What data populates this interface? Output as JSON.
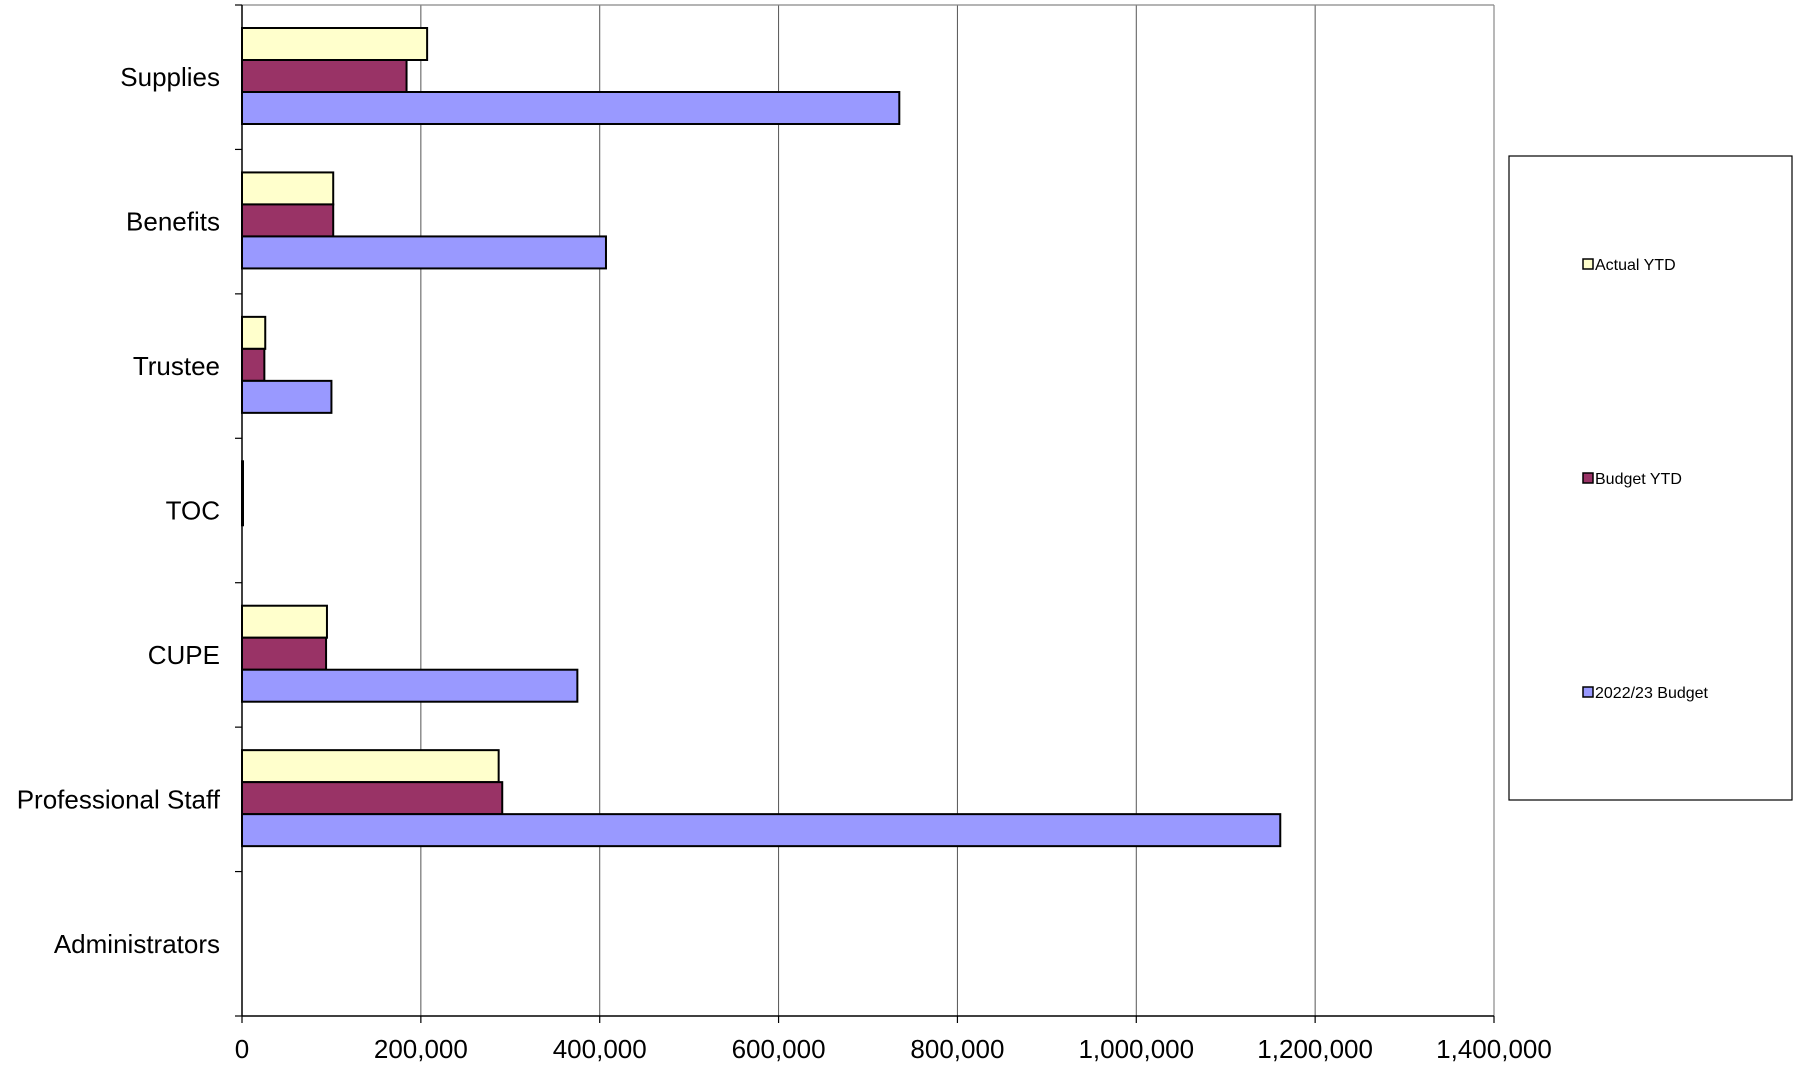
{
  "chart_data": {
    "type": "bar",
    "orientation": "horizontal",
    "categories": [
      "Supplies",
      "Benefits",
      "Trustee",
      "TOC",
      "CUPE",
      "Professional Staff",
      "Administrators"
    ],
    "series": [
      {
        "name": "Actual YTD",
        "color": "#FFFFCC",
        "values": [
          207000,
          102000,
          26000,
          1000,
          95000,
          287000,
          0
        ]
      },
      {
        "name": "Budget YTD",
        "color": "#993366",
        "values": [
          184000,
          102000,
          25000,
          1000,
          94000,
          291000,
          0
        ]
      },
      {
        "name": "2022/23 Budget",
        "color": "#9999FF",
        "values": [
          735000,
          407000,
          100000,
          0,
          375000,
          1161000,
          0
        ]
      }
    ],
    "xlim": [
      0,
      1400000
    ],
    "x_ticks": [
      0,
      200000,
      400000,
      600000,
      800000,
      1000000,
      1200000,
      1400000
    ],
    "x_tick_labels": [
      "0",
      "200,000",
      "400,000",
      "600,000",
      "800,000",
      "1,000,000",
      "1,200,000",
      "1,400,000"
    ],
    "grid": "vertical",
    "legend_position": "right",
    "title": "",
    "xlabel": "",
    "ylabel": ""
  }
}
